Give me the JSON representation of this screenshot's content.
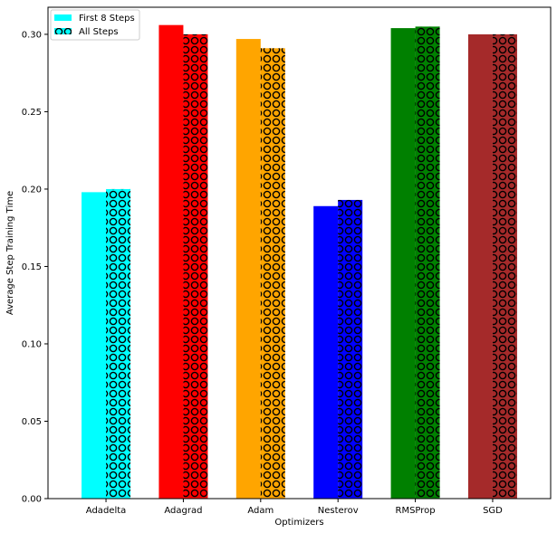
{
  "chart_data": {
    "type": "bar",
    "title": "",
    "xlabel": "Optimizers",
    "ylabel": "Average Step Training Time",
    "categories": [
      "Adadelta",
      "Adagrad",
      "Adam",
      "Nesterov",
      "RMSProp",
      "SGD"
    ],
    "colors": [
      "#00ffff",
      "#ff0000",
      "#ffa500",
      "#0000ff",
      "#008000",
      "#a52a2a"
    ],
    "series": [
      {
        "name": "First 8 Steps",
        "values": [
          0.198,
          0.306,
          0.297,
          0.189,
          0.304,
          0.3
        ],
        "pattern": "solid"
      },
      {
        "name": "All Steps",
        "values": [
          0.2,
          0.3,
          0.291,
          0.193,
          0.305,
          0.3
        ],
        "pattern": "circles"
      }
    ],
    "ylim": [
      0,
      0.3175
    ],
    "yticks": [
      0.0,
      0.05,
      0.1,
      0.15,
      0.2,
      0.25,
      0.3
    ],
    "ytick_labels": [
      "0.00",
      "0.05",
      "0.10",
      "0.15",
      "0.20",
      "0.25",
      "0.30"
    ],
    "legend_placement": "top-left",
    "grid": false,
    "legend_swatch_color": "#00ffff"
  }
}
